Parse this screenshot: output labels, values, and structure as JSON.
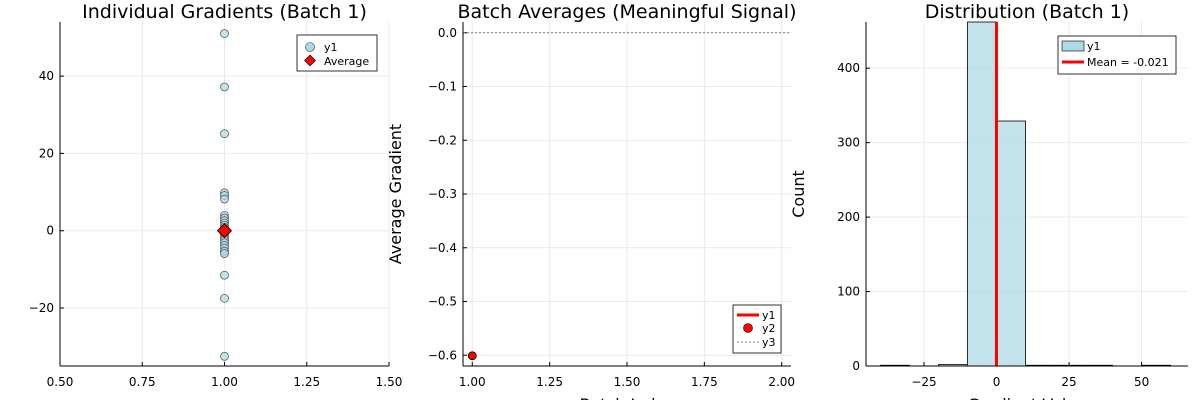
{
  "chart_data": [
    {
      "type": "scatter",
      "title": "Individual Gradients (Batch 1)",
      "xlabel": "",
      "ylabel": "",
      "xlim": [
        0.5,
        1.5
      ],
      "ylim": [
        -35,
        54
      ],
      "xticks": [
        "0.50",
        "0.75",
        "1.00",
        "1.25",
        "1.50"
      ],
      "xtick_values": [
        0.5,
        0.75,
        1.0,
        1.25,
        1.5
      ],
      "yticks": [
        "−20",
        "0",
        "20",
        "40"
      ],
      "ytick_values": [
        -20,
        0,
        20,
        40
      ],
      "grid": true,
      "legend_position": "top-right",
      "series": [
        {
          "name": "y1",
          "marker": "circle",
          "color": "#add8e6",
          "x": [
            1,
            1,
            1,
            1,
            1,
            1,
            1,
            1,
            1,
            1,
            1,
            1,
            1,
            1,
            1,
            1,
            1,
            1,
            1,
            1,
            1,
            1,
            1,
            1,
            1,
            1,
            1,
            1
          ],
          "y": [
            51,
            37.2,
            25.1,
            9.8,
            9.1,
            8.2,
            4.0,
            3.3,
            2.6,
            2.0,
            1.4,
            0.9,
            0.5,
            0.1,
            -0.3,
            -0.8,
            -1.3,
            -1.9,
            -2.5,
            -3.1,
            -3.8,
            -4.5,
            -5.3,
            -5.9,
            -11.5,
            -17.5,
            -32.5,
            0.3
          ]
        },
        {
          "name": "Average",
          "marker": "diamond",
          "color": "#ff0000",
          "x": [
            1.0
          ],
          "y": [
            0.0
          ]
        }
      ]
    },
    {
      "type": "line",
      "title": "Batch Averages (Meaningful Signal)",
      "xlabel": "Batch Index",
      "ylabel": "Average Gradient",
      "xlim": [
        0.97,
        2.03
      ],
      "ylim": [
        -0.62,
        0.02
      ],
      "xticks": [
        "1.00",
        "1.25",
        "1.50",
        "1.75",
        "2.00"
      ],
      "xtick_values": [
        1.0,
        1.25,
        1.5,
        1.75,
        2.0
      ],
      "yticks": [
        "0.0",
        "−0.1",
        "−0.2",
        "−0.3",
        "−0.4",
        "−0.5",
        "−0.6"
      ],
      "ytick_values": [
        0.0,
        -0.1,
        -0.2,
        -0.3,
        -0.4,
        -0.5,
        -0.6
      ],
      "grid": true,
      "legend_position": "bottom-right",
      "series": [
        {
          "name": "y1",
          "style": "line",
          "color": "#ff0000",
          "x": [
            1.0
          ],
          "y": [
            -0.601
          ]
        },
        {
          "name": "y2",
          "style": "marker",
          "color": "#ff0000",
          "x": [
            1.0
          ],
          "y": [
            -0.601
          ]
        },
        {
          "name": "y3",
          "style": "dotted-hline",
          "color": "#808080",
          "y": [
            0.0
          ]
        }
      ]
    },
    {
      "type": "bar",
      "title": "Distribution (Batch 1)",
      "xlabel": "Gradient Value",
      "ylabel": "Count",
      "xlim": [
        -45,
        66
      ],
      "ylim": [
        0,
        462
      ],
      "xticks": [
        "−25",
        "0",
        "25",
        "50"
      ],
      "xtick_values": [
        -25,
        0,
        25,
        50
      ],
      "yticks": [
        "0",
        "100",
        "200",
        "300",
        "400"
      ],
      "ytick_values": [
        0,
        100,
        200,
        300,
        400
      ],
      "grid": true,
      "legend_position": "top-right",
      "bins": [
        {
          "start": -40,
          "end": -30,
          "count": 1
        },
        {
          "start": -30,
          "end": -20,
          "count": 0
        },
        {
          "start": -20,
          "end": -10,
          "count": 2
        },
        {
          "start": -10,
          "end": 0,
          "count": 470
        },
        {
          "start": 0,
          "end": 10,
          "count": 329
        },
        {
          "start": 10,
          "end": 20,
          "count": 1
        },
        {
          "start": 20,
          "end": 30,
          "count": 1
        },
        {
          "start": 30,
          "end": 40,
          "count": 1
        },
        {
          "start": 40,
          "end": 50,
          "count": 0
        },
        {
          "start": 50,
          "end": 60,
          "count": 1
        }
      ],
      "series": [
        {
          "name": "y1",
          "color": "#add8e6"
        },
        {
          "name": "Mean = -0.021",
          "style": "vline",
          "color": "#ff0000",
          "x": -0.021
        }
      ]
    }
  ]
}
